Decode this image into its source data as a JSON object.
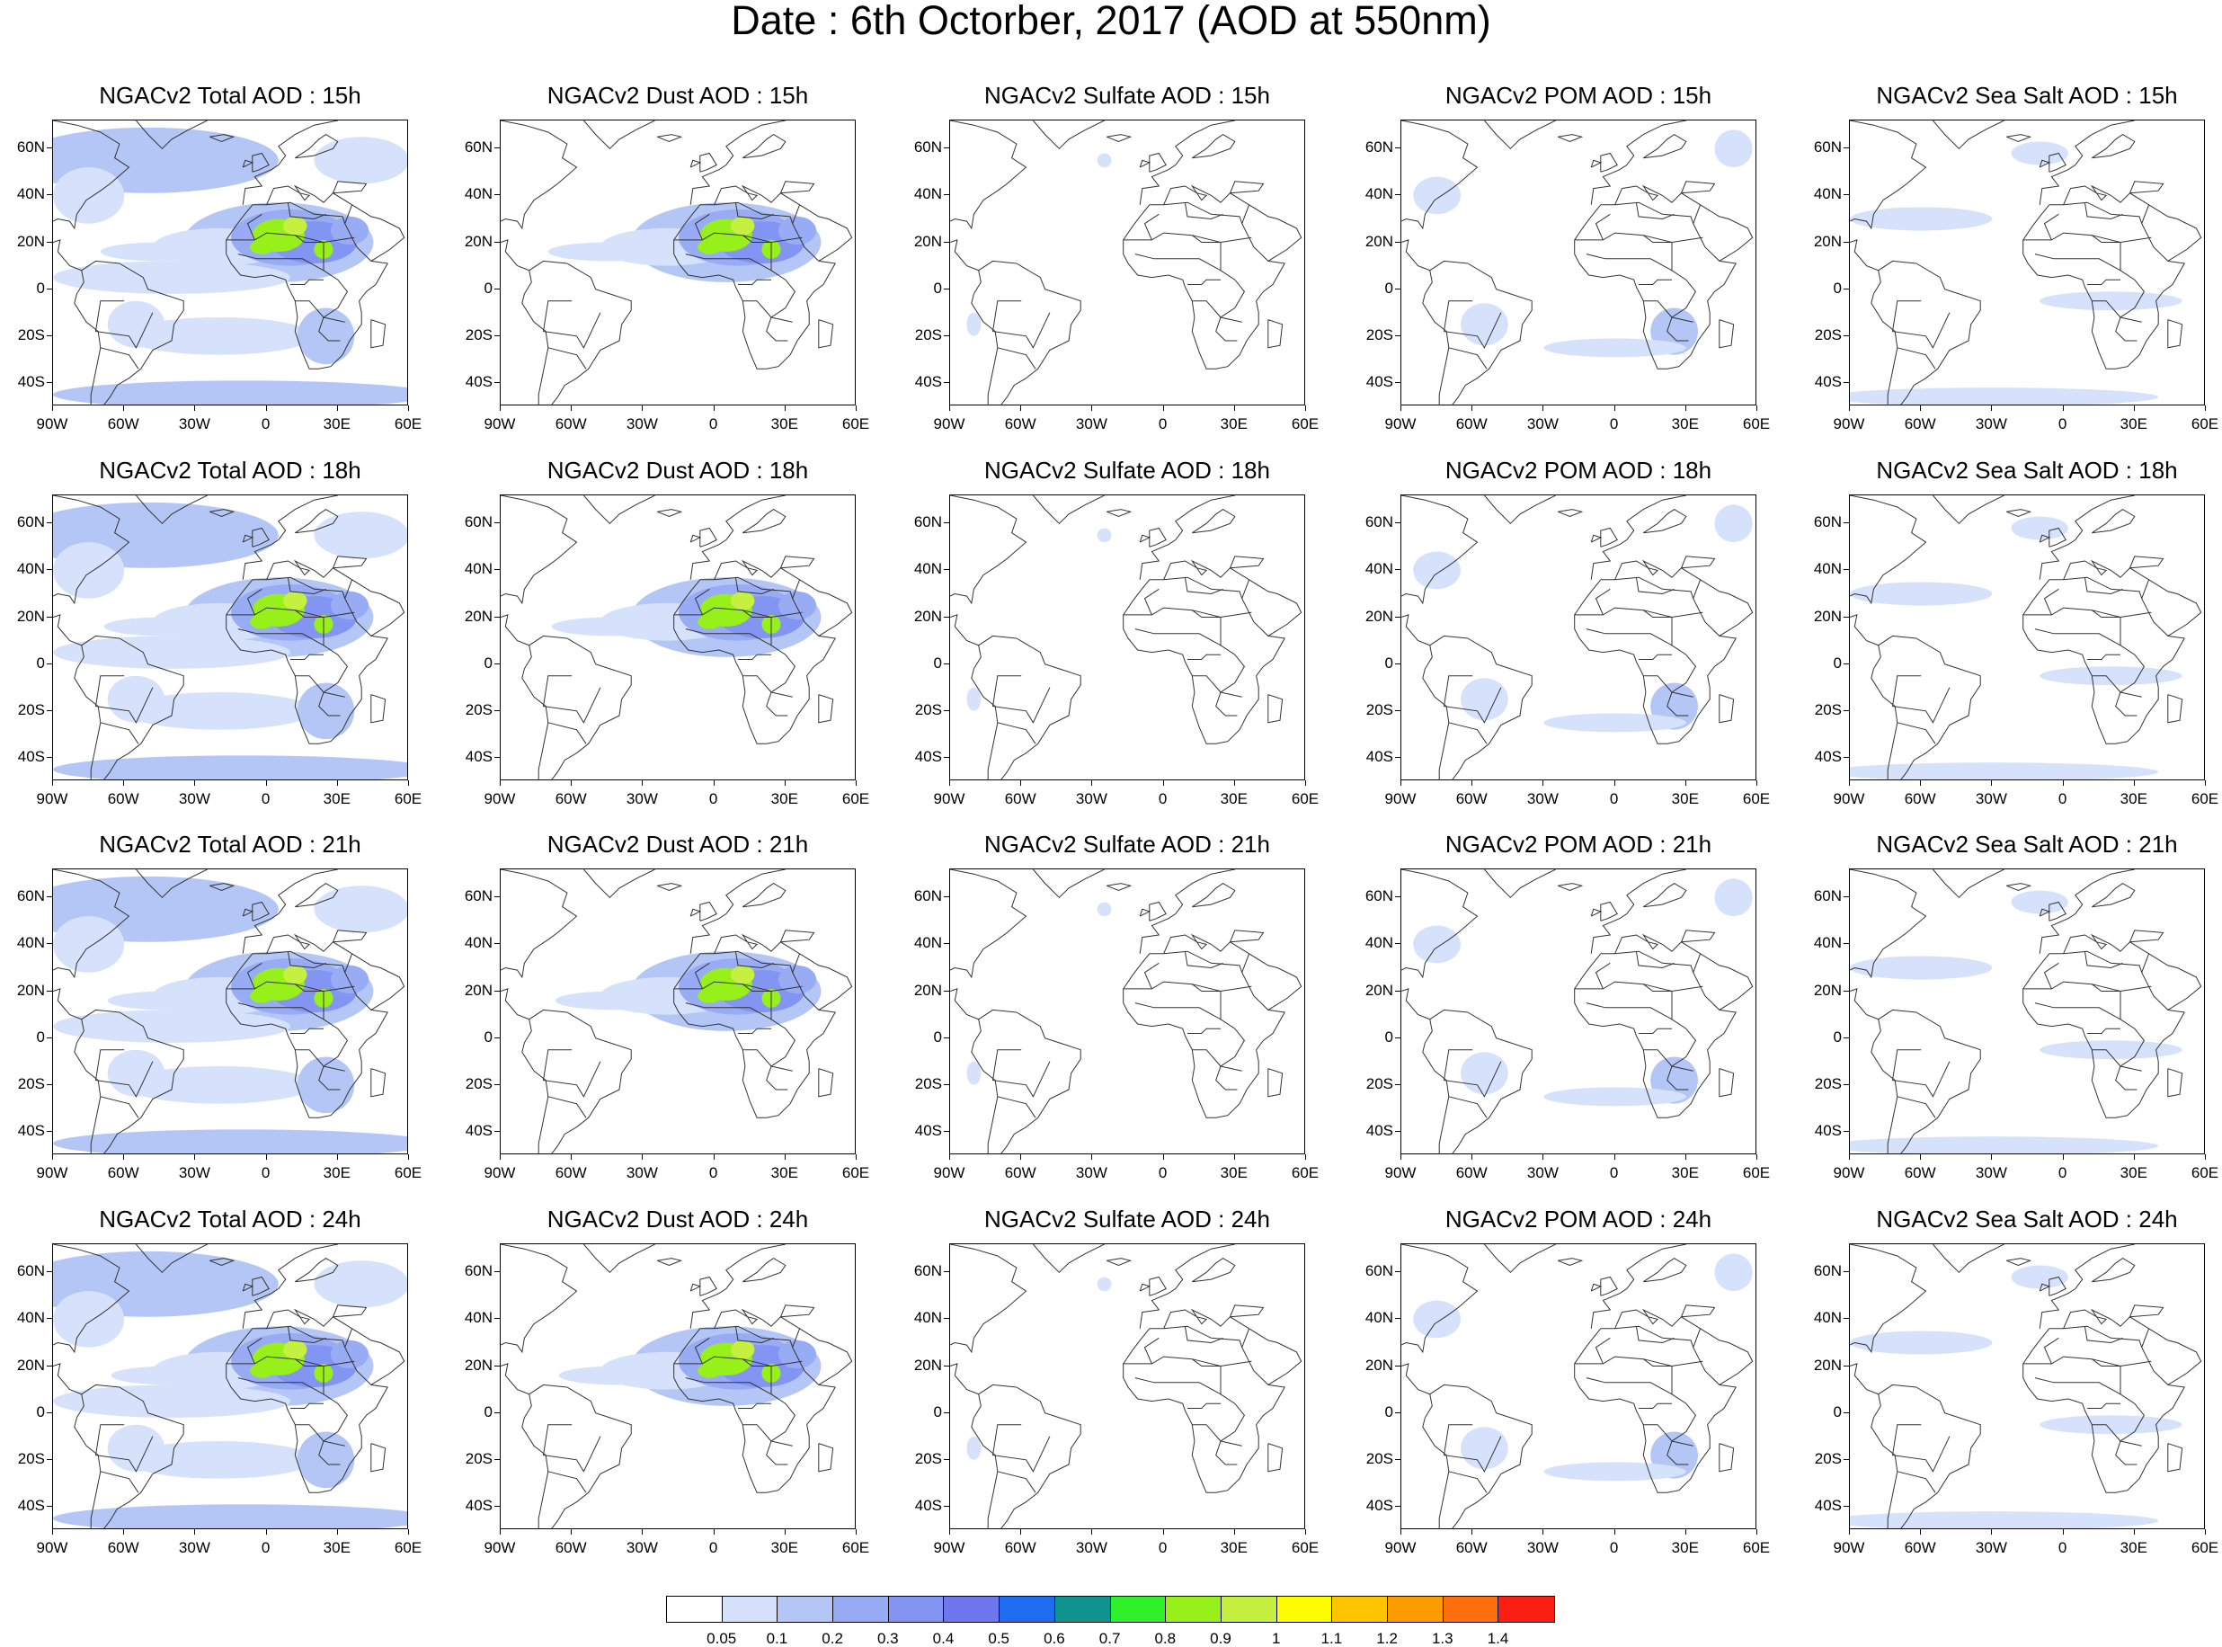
{
  "title": "Date : 6th Octorber, 2017 (AOD at 550nm)",
  "lat_ticks": [
    "60N",
    "40N",
    "20N",
    "0",
    "20S",
    "40S"
  ],
  "lon_ticks": [
    "90W",
    "60W",
    "30W",
    "0",
    "30E",
    "60E"
  ],
  "rows": [
    {
      "hour": "15h",
      "titles": [
        "NGACv2 Total AOD : 15h",
        "NGACv2 Dust AOD : 15h",
        "NGACv2 Sulfate AOD : 15h",
        "NGACv2 POM AOD : 15h",
        "NGACv2 Sea Salt AOD : 15h"
      ]
    },
    {
      "hour": "18h",
      "titles": [
        "NGACv2 Total AOD : 18h",
        "NGACv2 Dust AOD : 18h",
        "NGACv2 Sulfate AOD : 18h",
        "NGACv2 POM AOD : 18h",
        "NGACv2 Sea Salt AOD : 18h"
      ]
    },
    {
      "hour": "21h",
      "titles": [
        "NGACv2 Total AOD : 21h",
        "NGACv2 Dust AOD : 21h",
        "NGACv2 Sulfate AOD : 21h",
        "NGACv2 POM AOD : 21h",
        "NGACv2 Sea Salt AOD : 21h"
      ]
    },
    {
      "hour": "24h",
      "titles": [
        "NGACv2 Total AOD : 24h",
        "NGACv2 Dust AOD : 24h",
        "NGACv2 Sulfate AOD : 24h",
        "NGACv2 POM AOD : 24h",
        "NGACv2 Sea Salt  AOD : 24h"
      ]
    }
  ],
  "columns": [
    "Total",
    "Dust",
    "Sulfate",
    "POM",
    "Sea Salt"
  ],
  "colorbar": {
    "labels": [
      "0.05",
      "0.1",
      "0.2",
      "0.3",
      "0.4",
      "0.5",
      "0.6",
      "0.7",
      "0.8",
      "0.9",
      "1",
      "1.1",
      "1.2",
      "1.3",
      "1.4"
    ],
    "colors": [
      "#ffffff",
      "#d6e2fb",
      "#b3c6f6",
      "#97acf4",
      "#8395f2",
      "#6f77ee",
      "#1e6cf0",
      "#11948f",
      "#2ff02b",
      "#98f01a",
      "#c6f040",
      "#fefe00",
      "#fdc400",
      "#fd9c00",
      "#fc6f0c",
      "#fc1e12"
    ]
  }
}
